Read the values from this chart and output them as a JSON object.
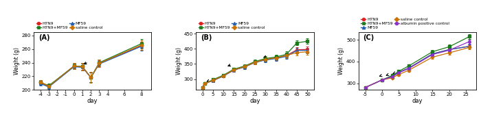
{
  "A": {
    "label": "(A)",
    "xlabel": "day",
    "ylabel": "Weight (g)",
    "ylim": [
      200,
      285
    ],
    "yticks": [
      200,
      220,
      240,
      260,
      280
    ],
    "xlim": [
      -4.8,
      9.2
    ],
    "xticks": [
      -4,
      -3,
      -2,
      -1,
      0,
      1,
      2,
      3,
      4,
      6,
      8
    ],
    "xticklabels": [
      "-4",
      "-3",
      "-2",
      "-1",
      "0",
      "1",
      "2",
      "3",
      "4",
      "6",
      "8"
    ],
    "arrow": [
      0.9,
      236,
      1.7,
      241
    ],
    "series": {
      "H7N9": {
        "color": "#e02020",
        "marker": "o",
        "x": [
          -4,
          -3,
          0,
          1,
          2,
          3,
          8
        ],
        "y": [
          210,
          205,
          235,
          234,
          218,
          239,
          265
        ],
        "yerr": [
          3,
          3,
          4,
          5,
          7,
          5,
          6
        ]
      },
      "H7N9+MF59": {
        "color": "#1a7a1a",
        "marker": "s",
        "x": [
          -4,
          -3,
          0,
          1,
          2,
          3,
          8
        ],
        "y": [
          211,
          206,
          235,
          234,
          218,
          240,
          268
        ],
        "yerr": [
          3,
          3,
          4,
          6,
          7,
          5,
          7
        ]
      },
      "MF59": {
        "color": "#1a5fb4",
        "marker": "^",
        "x": [
          -4,
          -3,
          0,
          1,
          2,
          3,
          8
        ],
        "y": [
          209,
          204,
          234,
          233,
          218,
          238,
          264
        ],
        "yerr": [
          3,
          3,
          4,
          5,
          7,
          5,
          6
        ]
      },
      "saline control": {
        "color": "#c87000",
        "marker": "D",
        "x": [
          -4,
          -3,
          0,
          1,
          2,
          3,
          8
        ],
        "y": [
          211,
          205,
          235,
          234,
          218,
          239,
          266
        ],
        "yerr": [
          3,
          3,
          5,
          6,
          8,
          6,
          7
        ]
      }
    },
    "legend_order": [
      "H7N9",
      "H7N9+MF59",
      "MF59",
      "saline control"
    ],
    "legend_ncol": 2
  },
  "B": {
    "label": "(B)",
    "xlabel": "day",
    "ylabel": "Weight (g)",
    "ylim": [
      265,
      455
    ],
    "yticks": [
      300,
      350,
      400,
      450
    ],
    "xlim": [
      -3,
      53
    ],
    "xticks": [
      0,
      5,
      10,
      15,
      20,
      25,
      30,
      35,
      40,
      45,
      50
    ],
    "xticklabels": [
      "0",
      "5",
      "10",
      "15",
      "20",
      "25",
      "30",
      "35",
      "40",
      "45",
      "50"
    ],
    "arrows": [
      [
        1,
        288,
        3.5,
        296
      ],
      [
        11,
        340,
        14,
        348
      ],
      [
        28,
        368,
        31,
        376
      ]
    ],
    "series": {
      "H7N9": {
        "color": "#e02020",
        "marker": "o",
        "x": [
          0,
          1,
          5,
          10,
          15,
          20,
          25,
          30,
          35,
          40,
          45,
          50
        ],
        "y": [
          272,
          285,
          295,
          310,
          330,
          340,
          355,
          365,
          370,
          378,
          397,
          398
        ],
        "yerr": [
          3,
          4,
          5,
          5,
          5,
          6,
          6,
          7,
          7,
          8,
          8,
          9
        ]
      },
      "H7N9+MF59": {
        "color": "#1a7a1a",
        "marker": "s",
        "x": [
          0,
          1,
          5,
          10,
          15,
          20,
          25,
          30,
          35,
          40,
          45,
          50
        ],
        "y": [
          272,
          285,
          298,
          313,
          333,
          343,
          358,
          368,
          373,
          382,
          420,
          425
        ],
        "yerr": [
          3,
          4,
          5,
          5,
          5,
          6,
          6,
          7,
          8,
          9,
          9,
          9
        ]
      },
      "MF59": {
        "color": "#1a5fb4",
        "marker": "^",
        "x": [
          0,
          1,
          5,
          10,
          15,
          20,
          25,
          30,
          35,
          40,
          45,
          50
        ],
        "y": [
          272,
          285,
          295,
          310,
          330,
          340,
          355,
          363,
          368,
          375,
          395,
          395
        ],
        "yerr": [
          3,
          4,
          5,
          5,
          5,
          6,
          6,
          7,
          7,
          8,
          9,
          9
        ]
      },
      "saline control": {
        "color": "#c87000",
        "marker": "D",
        "x": [
          0,
          1,
          5,
          10,
          15,
          20,
          25,
          30,
          35,
          40,
          45,
          50
        ],
        "y": [
          272,
          285,
          296,
          311,
          331,
          341,
          356,
          365,
          370,
          378,
          388,
          390
        ],
        "yerr": [
          3,
          4,
          5,
          5,
          5,
          6,
          7,
          8,
          8,
          9,
          10,
          10
        ]
      }
    },
    "legend_order": [
      "H7N9",
      "H7N9+MF59",
      "MF59",
      "saline control"
    ],
    "legend_ncol": 2
  },
  "C": {
    "label": "(C)",
    "xlabel": "day",
    "ylabel": "Weight (g)",
    "ylim": [
      270,
      535
    ],
    "yticks": [
      300,
      400,
      500
    ],
    "xlim": [
      -7,
      28
    ],
    "xticks": [
      -5,
      0,
      5,
      10,
      15,
      20,
      25
    ],
    "xticklabels": [
      "-5",
      "0",
      "5",
      "10",
      "15",
      "20",
      "25"
    ],
    "arrows": [
      [
        -1.5,
        328,
        0,
        336
      ],
      [
        0.5,
        332,
        2.0,
        340
      ],
      [
        2.5,
        340,
        4.0,
        348
      ]
    ],
    "series": {
      "H7N9": {
        "color": "#e02020",
        "marker": "o",
        "x": [
          -5,
          0,
          3,
          5,
          8,
          15,
          20,
          26
        ],
        "y": [
          280,
          315,
          330,
          350,
          370,
          435,
          455,
          470
        ],
        "yerr": [
          3,
          4,
          5,
          5,
          6,
          8,
          8,
          9
        ]
      },
      "H7N9+MF59": {
        "color": "#1a7a1a",
        "marker": "s",
        "x": [
          -5,
          0,
          3,
          5,
          8,
          15,
          20,
          26
        ],
        "y": [
          280,
          315,
          335,
          355,
          380,
          445,
          468,
          515
        ],
        "yerr": [
          3,
          4,
          5,
          5,
          6,
          8,
          9,
          10
        ]
      },
      "MF59": {
        "color": "#1a5fb4",
        "marker": "^",
        "x": [
          -5,
          0,
          3,
          5,
          8,
          15,
          20,
          26
        ],
        "y": [
          280,
          315,
          330,
          350,
          370,
          435,
          455,
          470
        ],
        "yerr": [
          3,
          4,
          5,
          5,
          6,
          8,
          8,
          9
        ]
      },
      "saline control": {
        "color": "#c87000",
        "marker": "D",
        "x": [
          -5,
          0,
          3,
          5,
          8,
          15,
          20,
          26
        ],
        "y": [
          280,
          315,
          325,
          340,
          360,
          420,
          440,
          465
        ],
        "yerr": [
          3,
          4,
          5,
          6,
          7,
          8,
          9,
          10
        ]
      },
      "albumin positive control": {
        "color": "#8b2fc9",
        "marker": "o",
        "x": [
          -5,
          0,
          3,
          5,
          8,
          15,
          20,
          26
        ],
        "y": [
          280,
          315,
          330,
          348,
          368,
          432,
          452,
          492
        ],
        "yerr": [
          3,
          4,
          5,
          5,
          6,
          8,
          8,
          9
        ]
      }
    },
    "legend_order": [
      "H7N9",
      "H7N9+MF59",
      "MF59",
      "saline control",
      "albumin positive control"
    ],
    "legend_ncol": 2
  },
  "colors": {
    "H7N9": "#e02020",
    "H7N9+MF59": "#1a7a1a",
    "MF59": "#1a5fb4",
    "saline control": "#c87000",
    "albumin positive control": "#8b2fc9"
  },
  "markers": {
    "H7N9": "o",
    "H7N9+MF59": "s",
    "MF59": "^",
    "saline control": "D",
    "albumin positive control": "o"
  }
}
